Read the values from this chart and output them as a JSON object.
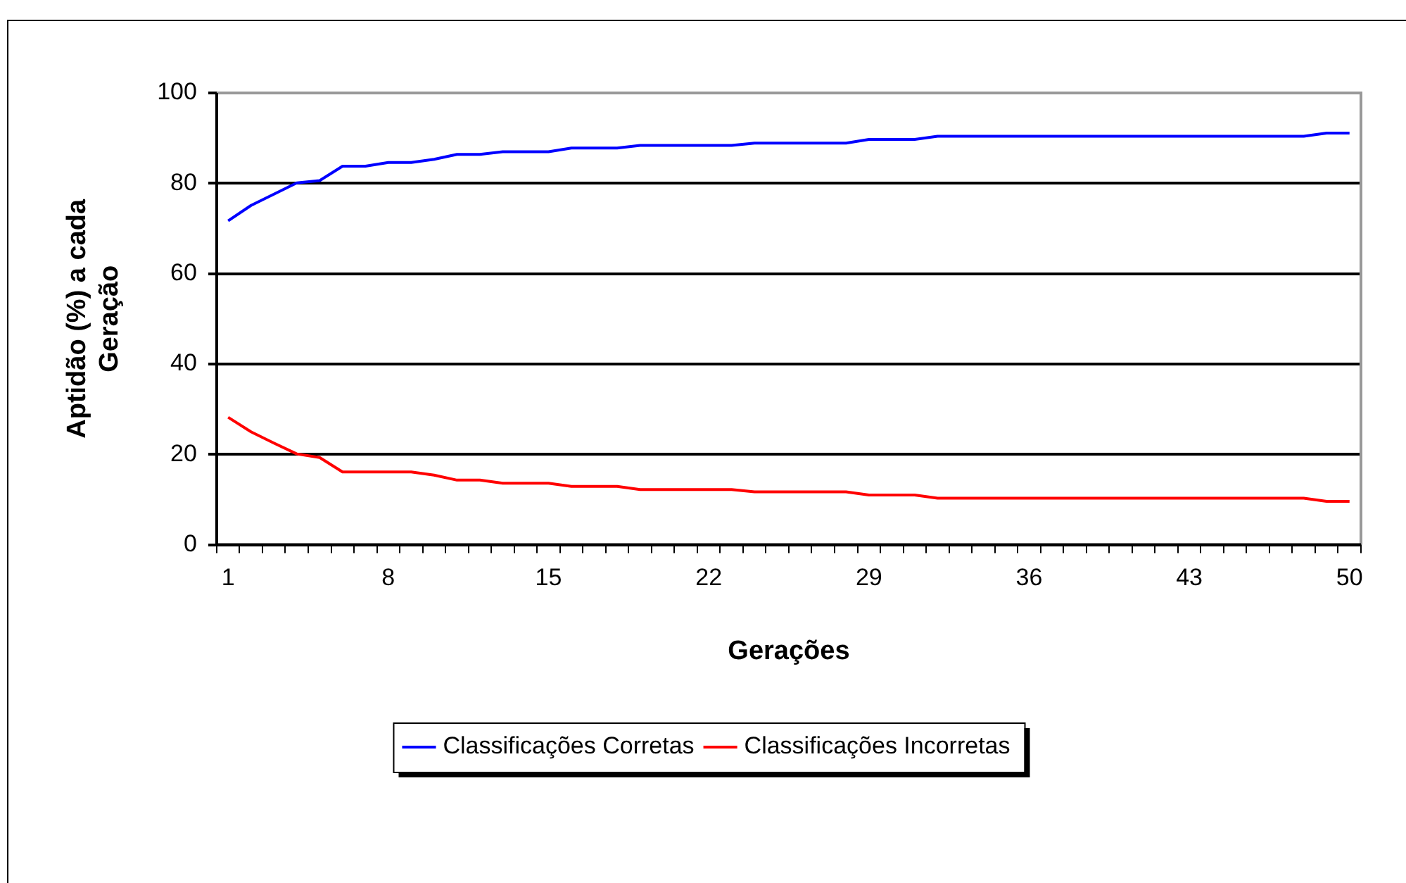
{
  "chart_data": {
    "type": "line",
    "xlabel": "Gerações",
    "ylabel": "Aptidão (%) a cada Geração",
    "categories": [
      "1",
      null,
      null,
      null,
      null,
      null,
      null,
      "8",
      null,
      null,
      null,
      null,
      null,
      null,
      "15",
      null,
      null,
      null,
      null,
      null,
      null,
      "22",
      null,
      null,
      null,
      null,
      null,
      null,
      "29",
      null,
      null,
      null,
      null,
      null,
      null,
      "36",
      null,
      null,
      null,
      null,
      null,
      null,
      "43",
      null,
      null,
      null,
      null,
      null,
      null,
      "50"
    ],
    "series": [
      {
        "name": "Classificações Corretas",
        "color": "#0000ff",
        "values": [
          71.7,
          75.1,
          77.6,
          80.1,
          80.6,
          83.8,
          83.8,
          84.6,
          84.6,
          85.3,
          86.4,
          86.4,
          87.0,
          87.0,
          87.0,
          87.8,
          87.8,
          87.8,
          88.4,
          88.4,
          88.4,
          88.4,
          88.4,
          88.9,
          88.9,
          88.9,
          88.9,
          88.9,
          89.7,
          89.7,
          89.7,
          90.4,
          90.4,
          90.4,
          90.4,
          90.4,
          90.4,
          90.4,
          90.4,
          90.4,
          90.4,
          90.4,
          90.4,
          90.4,
          90.4,
          90.4,
          90.4,
          90.4,
          91.1,
          91.1
        ]
      },
      {
        "name": "Classificações Incorretas",
        "color": "#ff0000",
        "values": [
          28.2,
          25.0,
          22.5,
          20.1,
          19.3,
          16.1,
          16.1,
          16.1,
          16.1,
          15.4,
          14.3,
          14.3,
          13.6,
          13.6,
          13.6,
          12.9,
          12.9,
          12.9,
          12.2,
          12.2,
          12.2,
          12.2,
          12.2,
          11.7,
          11.7,
          11.7,
          11.7,
          11.7,
          11.0,
          11.0,
          11.0,
          10.3,
          10.3,
          10.3,
          10.3,
          10.3,
          10.3,
          10.3,
          10.3,
          10.3,
          10.3,
          10.3,
          10.3,
          10.3,
          10.3,
          10.3,
          10.3,
          10.3,
          9.6,
          9.6
        ]
      }
    ],
    "ylim": [
      0,
      100
    ],
    "yticks": [
      0,
      20,
      40,
      60,
      80,
      100
    ],
    "grid": "y",
    "legend": "bottom",
    "marker": "none",
    "line_style": "solid"
  }
}
